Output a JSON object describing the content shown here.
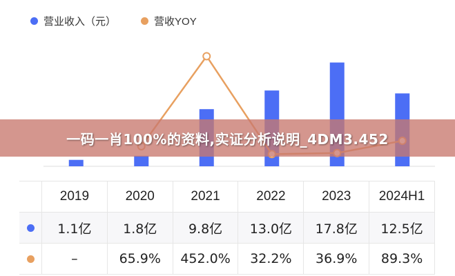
{
  "colors": {
    "revenue": "#4c6ef5",
    "yoy": "#e8a060",
    "banner": "#c8786e"
  },
  "legend": {
    "revenue_label": "营业收入（元）",
    "yoy_label": "营收YOY"
  },
  "banner": {
    "text": "一码一肖100%的资料,实证分析说明_4DM3.452"
  },
  "chart_data": {
    "type": "bar",
    "categories": [
      "2019",
      "2020",
      "2021",
      "2022",
      "2023",
      "2024H1"
    ],
    "series": [
      {
        "name": "营业收入（元）",
        "type": "bar",
        "values": [
          1.1,
          1.8,
          9.8,
          13.0,
          17.8,
          12.5
        ]
      },
      {
        "name": "营收YOY",
        "type": "line",
        "values": [
          null,
          65.9,
          452.0,
          32.2,
          36.9,
          89.3
        ]
      }
    ],
    "legend_position": "top-left"
  },
  "table": {
    "headers": [
      "2019",
      "2020",
      "2021",
      "2022",
      "2023",
      "2024H1"
    ],
    "rows": [
      {
        "series": "revenue",
        "cells": [
          "1.1亿",
          "1.8亿",
          "9.8亿",
          "13.0亿",
          "17.8亿",
          "12.5亿"
        ]
      },
      {
        "series": "yoy",
        "cells": [
          "–",
          "65.9%",
          "452.0%",
          "32.2%",
          "36.9%",
          "89.3%"
        ]
      }
    ]
  }
}
